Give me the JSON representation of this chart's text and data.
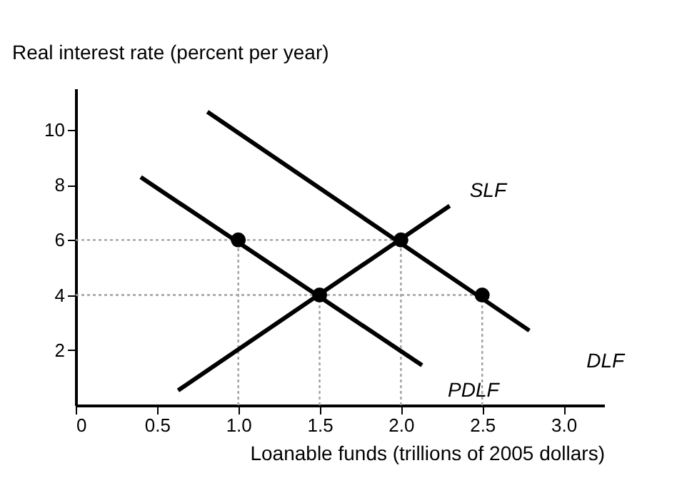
{
  "chart_data": {
    "type": "line",
    "xlabel": "Loanable funds (trillions of 2005 dollars)",
    "ylabel": "Real interest rate (percent per year)",
    "xlim": [
      0,
      3.25
    ],
    "xticks": [
      {
        "value": 0,
        "label": "0"
      },
      0.5,
      {
        "value": 1,
        "label": "1.0"
      },
      1.5,
      {
        "value": 2,
        "label": "2.0"
      },
      2.5,
      {
        "value": 3,
        "label": "3.0"
      }
    ],
    "ylim": [
      0,
      11.5
    ],
    "yticks": [
      2,
      4,
      6,
      8,
      10
    ],
    "grid": false,
    "series": [
      {
        "color": "#a0a0a0",
        "line_style": "dotted",
        "x": [
          0,
          2.0
        ],
        "values": [
          6,
          6
        ]
      },
      {
        "color": "#a0a0a0",
        "line_style": "dotted",
        "x": [
          0,
          2.5
        ],
        "values": [
          4,
          4
        ]
      },
      {
        "color": "#a0a0a0",
        "line_style": "dotted",
        "x": [
          1.0,
          1.0
        ],
        "values": [
          0,
          6
        ]
      },
      {
        "color": "#a0a0a0",
        "line_style": "dotted",
        "x": [
          1.5,
          1.5
        ],
        "values": [
          0,
          4
        ]
      },
      {
        "color": "#a0a0a0",
        "line_style": "dotted",
        "x": [
          2.0,
          2.0
        ],
        "values": [
          0,
          6
        ]
      },
      {
        "color": "#a0a0a0",
        "line_style": "dotted",
        "x": [
          2.5,
          2.5
        ],
        "values": [
          0,
          4
        ]
      },
      {
        "name": "SLF",
        "color": "#000000",
        "line_style": "solid",
        "x": [
          0.63,
          2.3
        ],
        "values": [
          0.54,
          7.24
        ]
      },
      {
        "name": "DLF",
        "color": "#000000",
        "line_style": "solid",
        "x": [
          0.81,
          2.79
        ],
        "values": [
          10.65,
          2.71
        ]
      },
      {
        "name": "PDLF",
        "color": "#000000",
        "line_style": "solid",
        "x": [
          0.4,
          2.13
        ],
        "values": [
          8.28,
          1.45
        ]
      },
      {
        "type": "scatter",
        "color": "#000000",
        "marker": "circle",
        "x": [
          1.0,
          1.5,
          2.0,
          2.5
        ],
        "values": [
          6,
          4,
          6,
          4
        ]
      }
    ]
  }
}
